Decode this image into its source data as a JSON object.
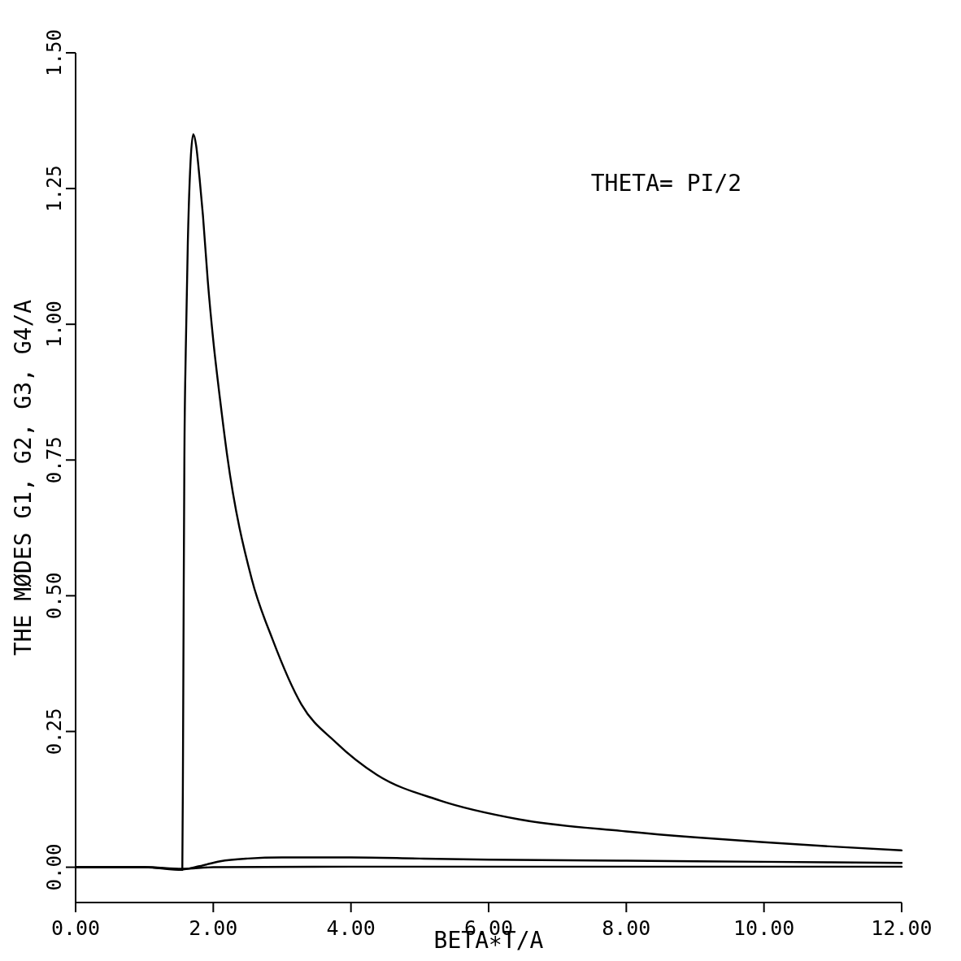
{
  "chart_data": {
    "type": "line",
    "xlabel": "BETA∗T/A",
    "ylabel": "THE MØDES G1, G2, G3, G4/A",
    "annotations": [
      "THETA= PI/2"
    ],
    "xlim": [
      0,
      12
    ],
    "ylim": [
      -0.065,
      1.5
    ],
    "xticks": [
      {
        "value": 0,
        "label": "0.00"
      },
      {
        "value": 2,
        "label": "2.00"
      },
      {
        "value": 4,
        "label": "4.00"
      },
      {
        "value": 6,
        "label": "6.00"
      },
      {
        "value": 8,
        "label": "8.00"
      },
      {
        "value": 10,
        "label": "10.00"
      },
      {
        "value": 12,
        "label": "12.00"
      }
    ],
    "yticks": [
      {
        "value": 0,
        "label": "0.00"
      },
      {
        "value": 0.25,
        "label": "0.25"
      },
      {
        "value": 0.5,
        "label": "0.50"
      },
      {
        "value": 0.75,
        "label": "0.75"
      },
      {
        "value": 1,
        "label": "1.00"
      },
      {
        "value": 1.25,
        "label": "1.25"
      },
      {
        "value": 1.5,
        "label": "1.50"
      }
    ],
    "grid": false,
    "marker": "none",
    "line_style": "solid",
    "series": [
      {
        "color": "#000000",
        "x": [
          0,
          1.0,
          1.55,
          1.56,
          1.57,
          1.58,
          1.6,
          1.63,
          1.67,
          1.71,
          1.75,
          1.8,
          1.85,
          1.92,
          2.0,
          2.1,
          2.2,
          2.56,
          2.86,
          3.28,
          3.78,
          4.38,
          5.29,
          6.45,
          8.0,
          9.0,
          10.0,
          11.0,
          12.0
        ],
        "values": [
          0,
          0,
          -0.005,
          0.2,
          0.5,
          0.75,
          0.95,
          1.15,
          1.3,
          1.35,
          1.33,
          1.27,
          1.2,
          1.08,
          0.97,
          0.86,
          0.76,
          0.53,
          0.42,
          0.3,
          0.23,
          0.17,
          0.123,
          0.088,
          0.066,
          0.055,
          0.046,
          0.038,
          0.031
        ]
      },
      {
        "color": "#000000",
        "x": [
          0,
          1.0,
          1.55,
          1.8,
          2.1,
          2.5,
          3.0,
          4.0,
          5.0,
          6.0,
          8.0,
          10.0,
          12.0
        ],
        "values": [
          0,
          0,
          -0.004,
          0.002,
          0.011,
          0.016,
          0.018,
          0.018,
          0.016,
          0.014,
          0.012,
          0.01,
          0.008
        ]
      },
      {
        "color": "#000000",
        "x": [
          0,
          1.0,
          1.55,
          2.0,
          4.0,
          6.0,
          8.0,
          10.0,
          12.0
        ],
        "values": [
          0,
          0,
          -0.003,
          0,
          0.001,
          0.001,
          0.001,
          0.001,
          0.001
        ]
      }
    ]
  }
}
